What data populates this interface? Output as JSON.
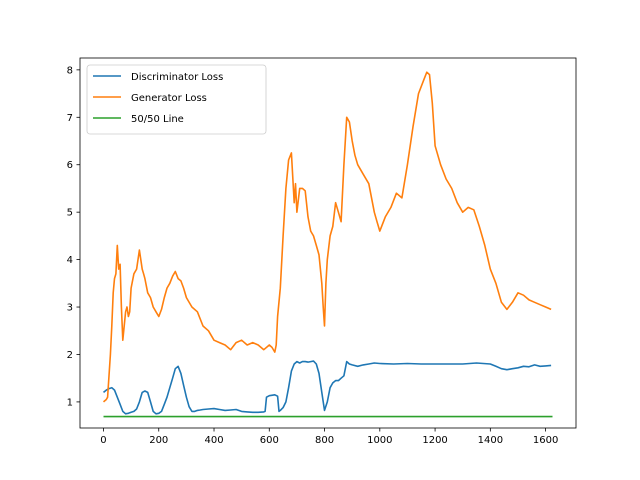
{
  "chart_data": {
    "type": "line",
    "title": "",
    "xlabel": "",
    "ylabel": "",
    "xlim": [
      -85,
      1710
    ],
    "ylim": [
      0.45,
      8.25
    ],
    "xticks": [
      0,
      200,
      400,
      600,
      800,
      1000,
      1200,
      1400,
      1600
    ],
    "yticks": [
      1,
      2,
      3,
      4,
      5,
      6,
      7,
      8
    ],
    "grid": false,
    "legend_position": "top-left",
    "series": [
      {
        "name": "Discriminator Loss",
        "color": "#1f77b4",
        "x": [
          0,
          10,
          20,
          30,
          40,
          50,
          60,
          70,
          80,
          90,
          100,
          110,
          120,
          130,
          140,
          150,
          160,
          170,
          180,
          190,
          200,
          210,
          220,
          230,
          240,
          250,
          260,
          270,
          280,
          290,
          300,
          310,
          320,
          330,
          340,
          350,
          360,
          380,
          400,
          420,
          440,
          460,
          480,
          500,
          520,
          540,
          560,
          580,
          585,
          590,
          600,
          620,
          630,
          635,
          640,
          650,
          660,
          670,
          680,
          690,
          700,
          710,
          720,
          730,
          740,
          750,
          760,
          770,
          780,
          790,
          800,
          810,
          820,
          830,
          840,
          850,
          860,
          870,
          880,
          890,
          900,
          920,
          940,
          960,
          980,
          1000,
          1050,
          1100,
          1150,
          1200,
          1250,
          1300,
          1350,
          1400,
          1420,
          1440,
          1460,
          1480,
          1500,
          1520,
          1540,
          1560,
          1580,
          1600,
          1620
        ],
        "values": [
          1.2,
          1.25,
          1.28,
          1.3,
          1.25,
          1.1,
          0.95,
          0.8,
          0.75,
          0.76,
          0.78,
          0.8,
          0.85,
          1.0,
          1.2,
          1.23,
          1.2,
          1.0,
          0.8,
          0.75,
          0.76,
          0.8,
          0.95,
          1.1,
          1.3,
          1.5,
          1.7,
          1.75,
          1.6,
          1.35,
          1.1,
          0.9,
          0.8,
          0.8,
          0.82,
          0.83,
          0.84,
          0.85,
          0.86,
          0.84,
          0.82,
          0.83,
          0.84,
          0.8,
          0.79,
          0.78,
          0.78,
          0.79,
          0.8,
          1.1,
          1.13,
          1.15,
          1.12,
          0.8,
          0.82,
          0.88,
          1.0,
          1.3,
          1.65,
          1.8,
          1.85,
          1.82,
          1.85,
          1.85,
          1.84,
          1.85,
          1.86,
          1.8,
          1.6,
          1.2,
          0.82,
          1.0,
          1.3,
          1.4,
          1.45,
          1.45,
          1.5,
          1.55,
          1.85,
          1.8,
          1.78,
          1.75,
          1.78,
          1.8,
          1.82,
          1.81,
          1.8,
          1.81,
          1.8,
          1.8,
          1.8,
          1.8,
          1.82,
          1.8,
          1.75,
          1.7,
          1.68,
          1.7,
          1.72,
          1.75,
          1.74,
          1.78,
          1.75,
          1.76,
          1.77
        ]
      },
      {
        "name": "Generator Loss",
        "color": "#ff7f0e",
        "x": [
          0,
          10,
          15,
          20,
          25,
          30,
          35,
          40,
          45,
          50,
          55,
          60,
          65,
          70,
          75,
          80,
          85,
          90,
          95,
          100,
          110,
          120,
          130,
          140,
          145,
          150,
          160,
          170,
          180,
          190,
          200,
          210,
          220,
          230,
          240,
          250,
          260,
          270,
          280,
          290,
          300,
          320,
          340,
          360,
          380,
          400,
          420,
          440,
          460,
          480,
          500,
          520,
          540,
          560,
          580,
          600,
          610,
          620,
          625,
          630,
          640,
          650,
          660,
          670,
          680,
          690,
          695,
          700,
          710,
          720,
          730,
          740,
          750,
          760,
          770,
          780,
          790,
          795,
          800,
          805,
          810,
          820,
          830,
          840,
          850,
          860,
          870,
          880,
          890,
          900,
          910,
          920,
          940,
          960,
          980,
          990,
          1000,
          1020,
          1040,
          1060,
          1080,
          1100,
          1120,
          1140,
          1160,
          1170,
          1180,
          1190,
          1200,
          1220,
          1240,
          1260,
          1280,
          1300,
          1320,
          1340,
          1360,
          1380,
          1400,
          1420,
          1440,
          1460,
          1480,
          1500,
          1520,
          1540,
          1560,
          1580,
          1600,
          1620
        ],
        "values": [
          1.0,
          1.05,
          1.1,
          1.55,
          2.0,
          2.6,
          3.3,
          3.6,
          3.7,
          4.3,
          3.8,
          3.9,
          3.0,
          2.3,
          2.6,
          2.9,
          3.0,
          2.8,
          2.9,
          3.4,
          3.7,
          3.8,
          4.2,
          3.8,
          3.7,
          3.6,
          3.3,
          3.2,
          3.0,
          2.9,
          2.8,
          2.95,
          3.2,
          3.4,
          3.5,
          3.65,
          3.75,
          3.6,
          3.55,
          3.4,
          3.2,
          3.0,
          2.9,
          2.6,
          2.5,
          2.3,
          2.25,
          2.2,
          2.1,
          2.25,
          2.3,
          2.2,
          2.25,
          2.2,
          2.1,
          2.2,
          2.15,
          2.05,
          2.2,
          2.8,
          3.4,
          4.5,
          5.5,
          6.1,
          6.25,
          5.2,
          5.6,
          5.0,
          5.5,
          5.5,
          5.45,
          4.9,
          4.6,
          4.5,
          4.3,
          4.1,
          3.5,
          3.0,
          2.6,
          3.5,
          4.0,
          4.5,
          4.7,
          5.2,
          5.0,
          4.8,
          6.0,
          7.0,
          6.9,
          6.5,
          6.2,
          6.0,
          5.8,
          5.6,
          5.0,
          4.8,
          4.6,
          4.9,
          5.1,
          5.4,
          5.3,
          6.0,
          6.8,
          7.5,
          7.8,
          7.95,
          7.9,
          7.3,
          6.4,
          6.0,
          5.7,
          5.5,
          5.2,
          5.0,
          5.1,
          5.05,
          4.7,
          4.3,
          3.8,
          3.5,
          3.1,
          2.95,
          3.1,
          3.3,
          3.25,
          3.15,
          3.1,
          3.05,
          3.0,
          2.95
        ]
      },
      {
        "name": "50/50 Line",
        "color": "#2ca02c",
        "x": [
          0,
          1625
        ],
        "values": [
          0.69,
          0.69
        ]
      }
    ]
  }
}
